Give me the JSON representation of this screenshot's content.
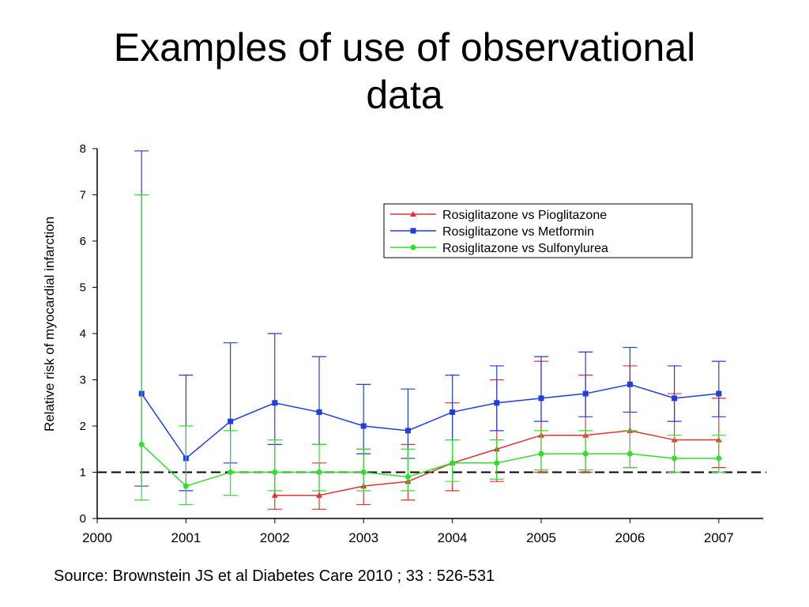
{
  "slide": {
    "title_line1": "Examples of use of observational",
    "title_line2": "data",
    "source": "Source: Brownstein JS et al Diabetes Care 2010 ; 33 : 526-531"
  },
  "chart_data": {
    "type": "line",
    "ylabel": "Relative risk of myocardial infarction",
    "xlim": [
      2000,
      2007.5
    ],
    "ylim": [
      0,
      8
    ],
    "xticks": [
      2000,
      2001,
      2002,
      2003,
      2004,
      2005,
      2006,
      2007
    ],
    "yticks": [
      0,
      1,
      2,
      3,
      4,
      5,
      6,
      7,
      8
    ],
    "reference_line": 1,
    "reference_line_style": "dashed",
    "grid": false,
    "legend_position": "top-right",
    "series": [
      {
        "name": "Rosiglitazone vs Pioglitazone",
        "color": "#e53030",
        "marker": "triangle",
        "x": [
          2002,
          2002.5,
          2003,
          2003.5,
          2004,
          2004.5,
          2005,
          2005.5,
          2006,
          2006.5,
          2007
        ],
        "y": [
          0.5,
          0.5,
          0.7,
          0.8,
          1.2,
          1.5,
          1.8,
          1.8,
          1.9,
          1.7,
          1.7
        ],
        "lower": [
          0.2,
          0.2,
          0.3,
          0.4,
          0.6,
          0.8,
          1.0,
          1.0,
          1.1,
          1.0,
          1.1
        ],
        "upper": [
          1.7,
          1.2,
          1.5,
          1.6,
          2.5,
          3.0,
          3.4,
          3.1,
          3.3,
          2.7,
          2.6
        ]
      },
      {
        "name": "Rosiglitazone vs Metformin",
        "color": "#1f3fd8",
        "marker": "square",
        "x": [
          2000.5,
          2001,
          2001.5,
          2002,
          2002.5,
          2003,
          2003.5,
          2004,
          2004.5,
          2005,
          2005.5,
          2006,
          2006.5,
          2007
        ],
        "y": [
          2.7,
          1.3,
          2.1,
          2.5,
          2.3,
          2.0,
          1.9,
          2.3,
          2.5,
          2.6,
          2.7,
          2.9,
          2.6,
          2.7
        ],
        "lower": [
          0.7,
          0.6,
          1.2,
          1.6,
          1.6,
          1.4,
          1.3,
          1.7,
          1.9,
          2.1,
          2.2,
          2.3,
          2.1,
          2.2
        ],
        "upper": [
          7.95,
          3.1,
          3.8,
          4.0,
          3.5,
          2.9,
          2.8,
          3.1,
          3.3,
          3.5,
          3.6,
          3.7,
          3.3,
          3.4
        ]
      },
      {
        "name": "Rosiglitazone vs Sulfonylurea",
        "color": "#2ee02e",
        "marker": "circle",
        "x": [
          2000.5,
          2001,
          2001.5,
          2002,
          2002.5,
          2003,
          2003.5,
          2004,
          2004.5,
          2005,
          2005.5,
          2006,
          2006.5,
          2007
        ],
        "y": [
          1.6,
          0.7,
          1.0,
          1.0,
          1.0,
          1.0,
          0.9,
          1.2,
          1.2,
          1.4,
          1.4,
          1.4,
          1.3,
          1.3
        ],
        "lower": [
          0.4,
          0.3,
          0.5,
          0.6,
          0.6,
          0.6,
          0.6,
          0.8,
          0.85,
          1.05,
          1.05,
          1.1,
          1.0,
          1.0
        ],
        "upper": [
          7.0,
          2.0,
          1.9,
          1.7,
          1.6,
          1.5,
          1.5,
          1.7,
          1.7,
          1.9,
          1.9,
          1.9,
          1.8,
          1.8
        ]
      }
    ]
  }
}
